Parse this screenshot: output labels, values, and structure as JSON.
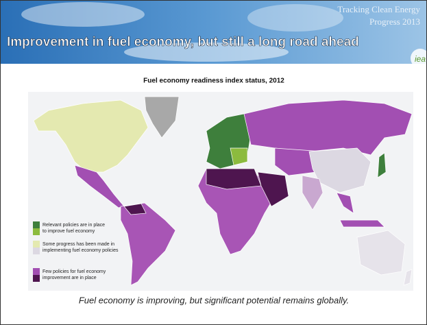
{
  "header": {
    "title": "Improvement in fuel economy, but still a long road ahead",
    "subtitle": [
      "Tracking Clean Energy",
      "Progress 2013"
    ],
    "logo": "iea"
  },
  "map": {
    "title": "Fuel economy readiness index status, 2012",
    "legend": [
      {
        "label": [
          "Relevant policies are in place",
          "to improve fuel economy"
        ],
        "colors": [
          "#3e7f3c",
          "#8cbb3e"
        ]
      },
      {
        "label": [
          "Some progress has been made in",
          "implementing fuel economy policies"
        ],
        "colors": [
          "#e4e9b0",
          "#dcd8e2"
        ]
      },
      {
        "label": [
          "Few policies for fuel economy",
          "improvement are in place"
        ],
        "colors": [
          "#a24fb2",
          "#4e154f"
        ]
      }
    ]
  },
  "caption": "Fuel economy is improving, but significant potential remains globally."
}
